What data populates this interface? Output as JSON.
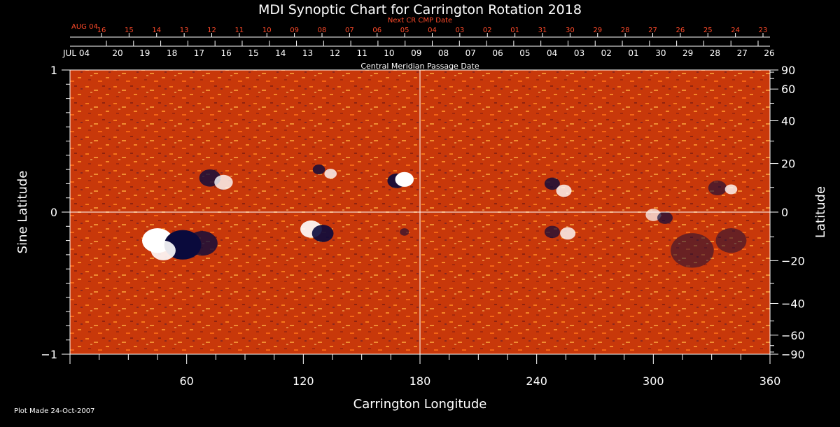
{
  "title": "MDI Synoptic Chart for Carrington Rotation 2018",
  "footer": "Plot Made 24-Oct-2007",
  "top_axes": {
    "next_label": "Next CR CMP Date",
    "next_start": "AUG 04",
    "next_ticks": [
      "16",
      "15",
      "14",
      "13",
      "12",
      "11",
      "10",
      "09",
      "08",
      "07",
      "06",
      "05",
      "04",
      "03",
      "02",
      "01",
      "31",
      "30",
      "29",
      "28",
      "27",
      "26",
      "25",
      "24",
      "23"
    ],
    "cmp_start": "JUL 04",
    "cmp_ticks": [
      "20",
      "19",
      "18",
      "17",
      "16",
      "15",
      "14",
      "13",
      "12",
      "11",
      "10",
      "09",
      "08",
      "07",
      "06",
      "05",
      "04",
      "03",
      "02",
      "01",
      "30",
      "29",
      "28",
      "27",
      "26"
    ],
    "cmp_label": "Central Meridian Passage Date"
  },
  "chart_data": {
    "type": "heatmap",
    "title": "MDI Synoptic Chart for Carrington Rotation 2018",
    "xlabel": "Carrington Longitude",
    "ylabel_left": "Sine Latitude",
    "ylabel_right": "Latitude",
    "xlim": [
      0,
      360
    ],
    "ylim": [
      -1,
      1
    ],
    "x_ticks": [
      60,
      120,
      180,
      240,
      300,
      360
    ],
    "y_ticks_left": [
      1,
      0,
      -1
    ],
    "y_ticks_right": [
      90,
      60,
      40,
      20,
      0,
      -20,
      -40,
      -60,
      -90
    ],
    "reference_lines": {
      "longitude": 180,
      "sine_latitude": 0
    },
    "colors": {
      "background": "#c8380a",
      "positive": "#ffffff",
      "negative": "#0a0a3c",
      "mid": "#ff7a1a"
    },
    "active_regions": [
      {
        "lon": 45,
        "sinlat": -0.2,
        "polarity": "positive",
        "strength": 1.0,
        "size": 10
      },
      {
        "lon": 58,
        "sinlat": -0.23,
        "polarity": "negative",
        "strength": 1.0,
        "size": 12
      },
      {
        "lon": 48,
        "sinlat": -0.27,
        "polarity": "positive",
        "strength": 0.9,
        "size": 8
      },
      {
        "lon": 68,
        "sinlat": -0.22,
        "polarity": "negative",
        "strength": 0.8,
        "size": 10
      },
      {
        "lon": 72,
        "sinlat": 0.24,
        "polarity": "negative",
        "strength": 0.8,
        "size": 7
      },
      {
        "lon": 79,
        "sinlat": 0.21,
        "polarity": "positive",
        "strength": 0.8,
        "size": 6
      },
      {
        "lon": 124,
        "sinlat": -0.12,
        "polarity": "positive",
        "strength": 0.9,
        "size": 7
      },
      {
        "lon": 130,
        "sinlat": -0.15,
        "polarity": "negative",
        "strength": 0.9,
        "size": 7
      },
      {
        "lon": 128,
        "sinlat": 0.3,
        "polarity": "negative",
        "strength": 0.8,
        "size": 4
      },
      {
        "lon": 134,
        "sinlat": 0.27,
        "polarity": "positive",
        "strength": 0.8,
        "size": 4
      },
      {
        "lon": 168,
        "sinlat": 0.22,
        "polarity": "negative",
        "strength": 0.9,
        "size": 6
      },
      {
        "lon": 172,
        "sinlat": 0.23,
        "polarity": "positive",
        "strength": 1.0,
        "size": 6
      },
      {
        "lon": 172,
        "sinlat": -0.14,
        "polarity": "negative",
        "strength": 0.6,
        "size": 3
      },
      {
        "lon": 248,
        "sinlat": 0.2,
        "polarity": "negative",
        "strength": 0.8,
        "size": 5
      },
      {
        "lon": 254,
        "sinlat": 0.15,
        "polarity": "positive",
        "strength": 0.8,
        "size": 5
      },
      {
        "lon": 248,
        "sinlat": -0.14,
        "polarity": "negative",
        "strength": 0.7,
        "size": 5
      },
      {
        "lon": 256,
        "sinlat": -0.15,
        "polarity": "positive",
        "strength": 0.8,
        "size": 5
      },
      {
        "lon": 300,
        "sinlat": -0.02,
        "polarity": "positive",
        "strength": 0.7,
        "size": 5
      },
      {
        "lon": 306,
        "sinlat": -0.04,
        "polarity": "negative",
        "strength": 0.7,
        "size": 5
      },
      {
        "lon": 333,
        "sinlat": 0.17,
        "polarity": "negative",
        "strength": 0.6,
        "size": 6
      },
      {
        "lon": 340,
        "sinlat": 0.16,
        "polarity": "positive",
        "strength": 0.8,
        "size": 4
      },
      {
        "lon": 320,
        "sinlat": -0.27,
        "polarity": "negative",
        "strength": 0.5,
        "size": 14
      },
      {
        "lon": 340,
        "sinlat": -0.2,
        "polarity": "negative",
        "strength": 0.5,
        "size": 10
      }
    ]
  }
}
